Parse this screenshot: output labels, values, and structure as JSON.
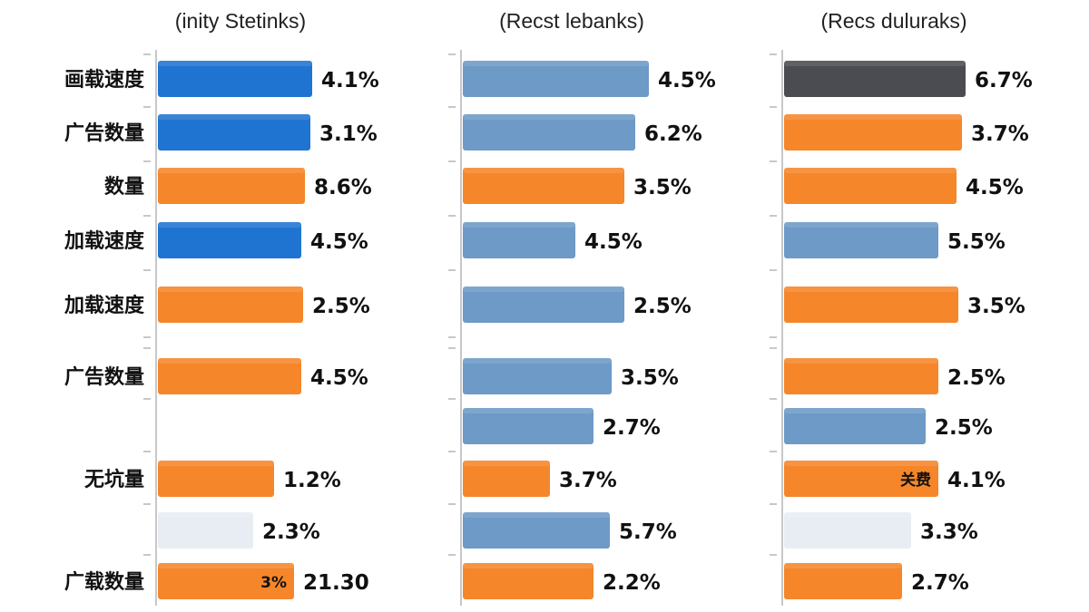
{
  "colors": {
    "blue": "#1f74d2",
    "steel": "#6d9ac6",
    "orange": "#f5862a",
    "dark": "#4a4c51",
    "light": "#e7edf3",
    "axis": "#b5b5b5",
    "text": "#111111"
  },
  "chart_data": [
    {
      "type": "bar",
      "orientation": "horizontal",
      "title": "",
      "subtitle": "(inity Stetinks)",
      "categories": [
        "画载速度",
        "广告数量",
        "数量",
        "加载速度",
        "加载速度",
        "广告数量",
        "",
        "无坑量",
        "",
        "广载数量"
      ],
      "values": [
        4.1,
        3.1,
        8.6,
        4.5,
        2.5,
        4.5,
        null,
        1.2,
        2.3,
        21.3
      ],
      "value_labels": [
        "4.1%",
        "3.1%",
        "8.6%",
        "4.5%",
        "2.5%",
        "4.5%",
        "",
        "1.2%",
        "2.3%",
        "21.30"
      ],
      "bar_colors": [
        "blue",
        "blue",
        "orange",
        "blue",
        "orange",
        "orange",
        "none",
        "orange",
        "light",
        "orange"
      ],
      "inner_labels": [
        "",
        "",
        "",
        "",
        "",
        "",
        "",
        "",
        "",
        "3%"
      ]
    },
    {
      "type": "bar",
      "orientation": "horizontal",
      "title": "",
      "subtitle": "(Recst lebanks)",
      "categories": [
        "",
        "",
        "",
        "",
        "",
        "",
        "",
        "",
        "",
        ""
      ],
      "values": [
        4.5,
        6.2,
        3.5,
        4.5,
        2.5,
        3.5,
        2.7,
        3.7,
        5.7,
        2.2
      ],
      "value_labels": [
        "4.5%",
        "6.2%",
        "3.5%",
        "4.5%",
        "2.5%",
        "3.5%",
        "2.7%",
        "3.7%",
        "5.7%",
        "2.2%"
      ],
      "bar_colors": [
        "steel",
        "steel",
        "orange",
        "steel",
        "steel",
        "steel",
        "steel",
        "orange",
        "steel",
        "orange"
      ],
      "inner_labels": [
        "",
        "",
        "",
        "",
        "",
        "",
        "",
        "",
        "",
        ""
      ]
    },
    {
      "type": "bar",
      "orientation": "horizontal",
      "title": "",
      "subtitle": "(Recs duluraks)",
      "categories": [
        "",
        "",
        "",
        "",
        "",
        "",
        "",
        "",
        "",
        ""
      ],
      "values": [
        6.7,
        3.7,
        4.5,
        5.5,
        3.5,
        2.5,
        2.5,
        4.1,
        3.3,
        2.7
      ],
      "value_labels": [
        "6.7%",
        "3.7%",
        "4.5%",
        "5.5%",
        "3.5%",
        "2.5%",
        "2.5%",
        "4.1%",
        "3.3%",
        "2.7%"
      ],
      "bar_colors": [
        "dark",
        "orange",
        "orange",
        "steel",
        "orange",
        "orange",
        "steel",
        "orange",
        "light",
        "orange"
      ],
      "inner_labels": [
        "",
        "",
        "",
        "",
        "",
        "",
        "",
        "关费",
        "",
        ""
      ]
    }
  ]
}
